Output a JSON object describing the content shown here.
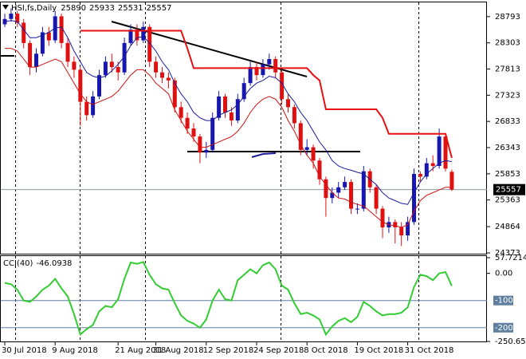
{
  "chart_data": [
    {
      "type": "candlestick",
      "symbol": "HSI,fs,Daily",
      "header_ohlc": [
        25890,
        25933,
        25531,
        25557
      ],
      "up_color": "#1717b0",
      "down_color": "#e01010",
      "ylim": [
        24358,
        29060
      ],
      "yticks": [
        28793,
        28303,
        27813,
        27323,
        26833,
        26343,
        25853,
        25363,
        24864,
        24373
      ],
      "categories": [
        "30 Jul 2018",
        null,
        null,
        null,
        null,
        null,
        null,
        null,
        "9 Aug 2018",
        null,
        null,
        null,
        null,
        null,
        null,
        null,
        null,
        null,
        "21 Aug 2018",
        null,
        null,
        null,
        null,
        null,
        "31 Aug 2018",
        null,
        null,
        null,
        null,
        null,
        null,
        null,
        "12 Sep 2018",
        null,
        null,
        null,
        null,
        null,
        null,
        null,
        "24 Sep 2018",
        null,
        null,
        null,
        null,
        null,
        null,
        null,
        "8 Oct 2018",
        null,
        null,
        null,
        null,
        null,
        null,
        null,
        "19 Oct 2018",
        null,
        null,
        null,
        null,
        null,
        null,
        null,
        "31 Oct 2018",
        null,
        null,
        null,
        null,
        null,
        null,
        null
      ],
      "open": [
        28650,
        28750,
        28850,
        28680,
        28300,
        27850,
        28100,
        28500,
        28350,
        28800,
        28300,
        27950,
        27800,
        27200,
        26950,
        27300,
        27700,
        27950,
        27850,
        27750,
        28300,
        28550,
        28350,
        28600,
        27950,
        27750,
        27650,
        27600,
        27100,
        26900,
        26700,
        26550,
        26250,
        26300,
        26900,
        27300,
        27000,
        26850,
        27250,
        27550,
        27850,
        27700,
        27900,
        28000,
        27750,
        27250,
        27100,
        26800,
        26300,
        26350,
        26100,
        25750,
        25400,
        25500,
        25600,
        25700,
        25200,
        25200,
        25900,
        25600,
        25200,
        24850,
        24950,
        24850,
        24700,
        24950,
        25850,
        25800,
        26050,
        26000,
        26550,
        25890
      ],
      "high": [
        28850,
        28950,
        28900,
        28750,
        28350,
        28200,
        28600,
        28600,
        28900,
        28850,
        28400,
        28050,
        27850,
        27300,
        27400,
        27800,
        28050,
        28100,
        27950,
        28400,
        28650,
        28650,
        28700,
        28650,
        28050,
        27850,
        27750,
        27650,
        27200,
        27000,
        26800,
        26600,
        26450,
        27000,
        27400,
        27350,
        27100,
        27350,
        27650,
        27950,
        27950,
        28000,
        28100,
        28050,
        27800,
        27350,
        27150,
        26850,
        26500,
        26400,
        26150,
        25800,
        25600,
        25700,
        25800,
        25750,
        25300,
        26000,
        25950,
        25650,
        25250,
        25050,
        25000,
        24950,
        25050,
        25950,
        25900,
        26150,
        26200,
        26700,
        26600,
        25933
      ],
      "low": [
        28600,
        28700,
        28600,
        28200,
        27700,
        27750,
        28050,
        28250,
        28300,
        28200,
        27850,
        27650,
        26750,
        26850,
        26900,
        27250,
        27650,
        27750,
        27600,
        27700,
        28250,
        28250,
        28300,
        27850,
        27650,
        27550,
        27450,
        27000,
        26800,
        26600,
        26450,
        26050,
        26150,
        26250,
        26850,
        26900,
        26750,
        26800,
        27200,
        27500,
        27600,
        27650,
        27800,
        27650,
        27150,
        27000,
        26700,
        26200,
        26200,
        25950,
        25650,
        25050,
        25300,
        25400,
        25550,
        25100,
        25100,
        25150,
        25500,
        25100,
        24650,
        24750,
        24550,
        24500,
        24600,
        24900,
        25700,
        25750,
        25900,
        25950,
        25900,
        25531
      ],
      "close": [
        28750,
        28850,
        28680,
        28300,
        27850,
        28100,
        28500,
        28350,
        28800,
        28300,
        27950,
        27800,
        27200,
        26950,
        27300,
        27700,
        27950,
        27850,
        27750,
        28300,
        28550,
        28350,
        28600,
        27950,
        27750,
        27650,
        27600,
        27100,
        26900,
        26700,
        26550,
        26250,
        26300,
        26900,
        27300,
        27000,
        26850,
        27250,
        27550,
        27850,
        27700,
        27900,
        28000,
        27750,
        27250,
        27100,
        26800,
        26300,
        26350,
        26100,
        25750,
        25400,
        25500,
        25600,
        25700,
        25200,
        25200,
        25900,
        25600,
        25200,
        24850,
        24950,
        24850,
        24700,
        24950,
        25850,
        25800,
        26050,
        26000,
        26550,
        25950,
        25557
      ],
      "overlays": [
        {
          "color": "#1a1a9c",
          "width": 1,
          "values": [
            28700,
            28720,
            28700,
            28550,
            28400,
            28400,
            28450,
            28500,
            28580,
            28600,
            28400,
            28150,
            27950,
            27750,
            27680,
            27650,
            27680,
            27780,
            27900,
            28050,
            28250,
            28400,
            28420,
            28300,
            28150,
            27950,
            27800,
            27550,
            27350,
            27200,
            27000,
            26900,
            26850,
            26850,
            26950,
            27000,
            27050,
            27150,
            27300,
            27450,
            27550,
            27600,
            27680,
            27650,
            27550,
            27350,
            27200,
            27000,
            26850,
            26650,
            26450,
            26300,
            26100,
            26000,
            25950,
            25920,
            25880,
            25850,
            25750,
            25650,
            25500,
            25400,
            25350,
            25300,
            25280,
            25500,
            25700,
            25850,
            25950,
            26050,
            26100,
            26080
          ]
        },
        {
          "color": "#d01010",
          "width": 1,
          "values": [
            28200,
            28200,
            28150,
            28000,
            27850,
            27850,
            27900,
            27950,
            28000,
            27950,
            27750,
            27550,
            27350,
            27200,
            27150,
            27200,
            27250,
            27300,
            27400,
            27550,
            27700,
            27800,
            27800,
            27700,
            27550,
            27450,
            27350,
            27050,
            26850,
            26650,
            26500,
            26350,
            26350,
            26400,
            26450,
            26500,
            26550,
            26650,
            26800,
            27000,
            27150,
            27250,
            27300,
            27250,
            27100,
            26850,
            26650,
            26400,
            26200,
            26050,
            25800,
            25650,
            25500,
            25400,
            25380,
            25320,
            25280,
            25250,
            25150,
            25050,
            24950,
            24900,
            24880,
            24850,
            24900,
            25150,
            25350,
            25450,
            25500,
            25550,
            25600,
            25600
          ]
        },
        {
          "color": "#e81010",
          "width": 2,
          "values": [
            null,
            null,
            null,
            null,
            null,
            null,
            null,
            null,
            null,
            null,
            null,
            null,
            28530,
            28530,
            28530,
            28530,
            28530,
            28530,
            28530,
            28530,
            28530,
            28530,
            28530,
            28530,
            28530,
            28530,
            28530,
            28530,
            28530,
            28200,
            27830,
            27830,
            27830,
            27830,
            27830,
            27830,
            27830,
            27830,
            27830,
            27830,
            27830,
            27830,
            27830,
            27830,
            27830,
            27830,
            27830,
            27830,
            27830,
            27700,
            27600,
            27060,
            27060,
            27060,
            27060,
            27060,
            27060,
            27060,
            27060,
            27060,
            26900,
            26600,
            26600,
            26600,
            26600,
            26600,
            26600,
            26600,
            26600,
            26600,
            26600,
            26150
          ]
        }
      ]
    },
    {
      "type": "line",
      "title": "CCI(40)",
      "color": "#33cc33",
      "ylim": [
        -250.65,
        57.7214
      ],
      "yticks": [
        57.7214,
        {
          "value": 0,
          "label": "0.00"
        },
        {
          "value": -250.65,
          "label": "-250.650"
        }
      ],
      "levels": [
        -100,
        -200
      ],
      "level_color": "#5f7f9f",
      "values": [
        -35,
        -40,
        -60,
        -100,
        -105,
        -85,
        -60,
        -45,
        -20,
        -55,
        -85,
        -150,
        -225,
        -205,
        -190,
        -140,
        -120,
        -125,
        -95,
        -20,
        40,
        35,
        42,
        -5,
        -40,
        -55,
        -60,
        -110,
        -155,
        -175,
        -185,
        -200,
        -170,
        -100,
        -60,
        -95,
        -100,
        -25,
        -5,
        15,
        0,
        30,
        40,
        15,
        -45,
        -60,
        -110,
        -150,
        -145,
        -155,
        -170,
        -225,
        -195,
        -175,
        -165,
        -180,
        -160,
        -105,
        -120,
        -140,
        -155,
        -150,
        -150,
        -145,
        -125,
        -50,
        -5,
        -10,
        -25,
        0,
        5,
        -46.0938
      ]
    }
  ]
}
